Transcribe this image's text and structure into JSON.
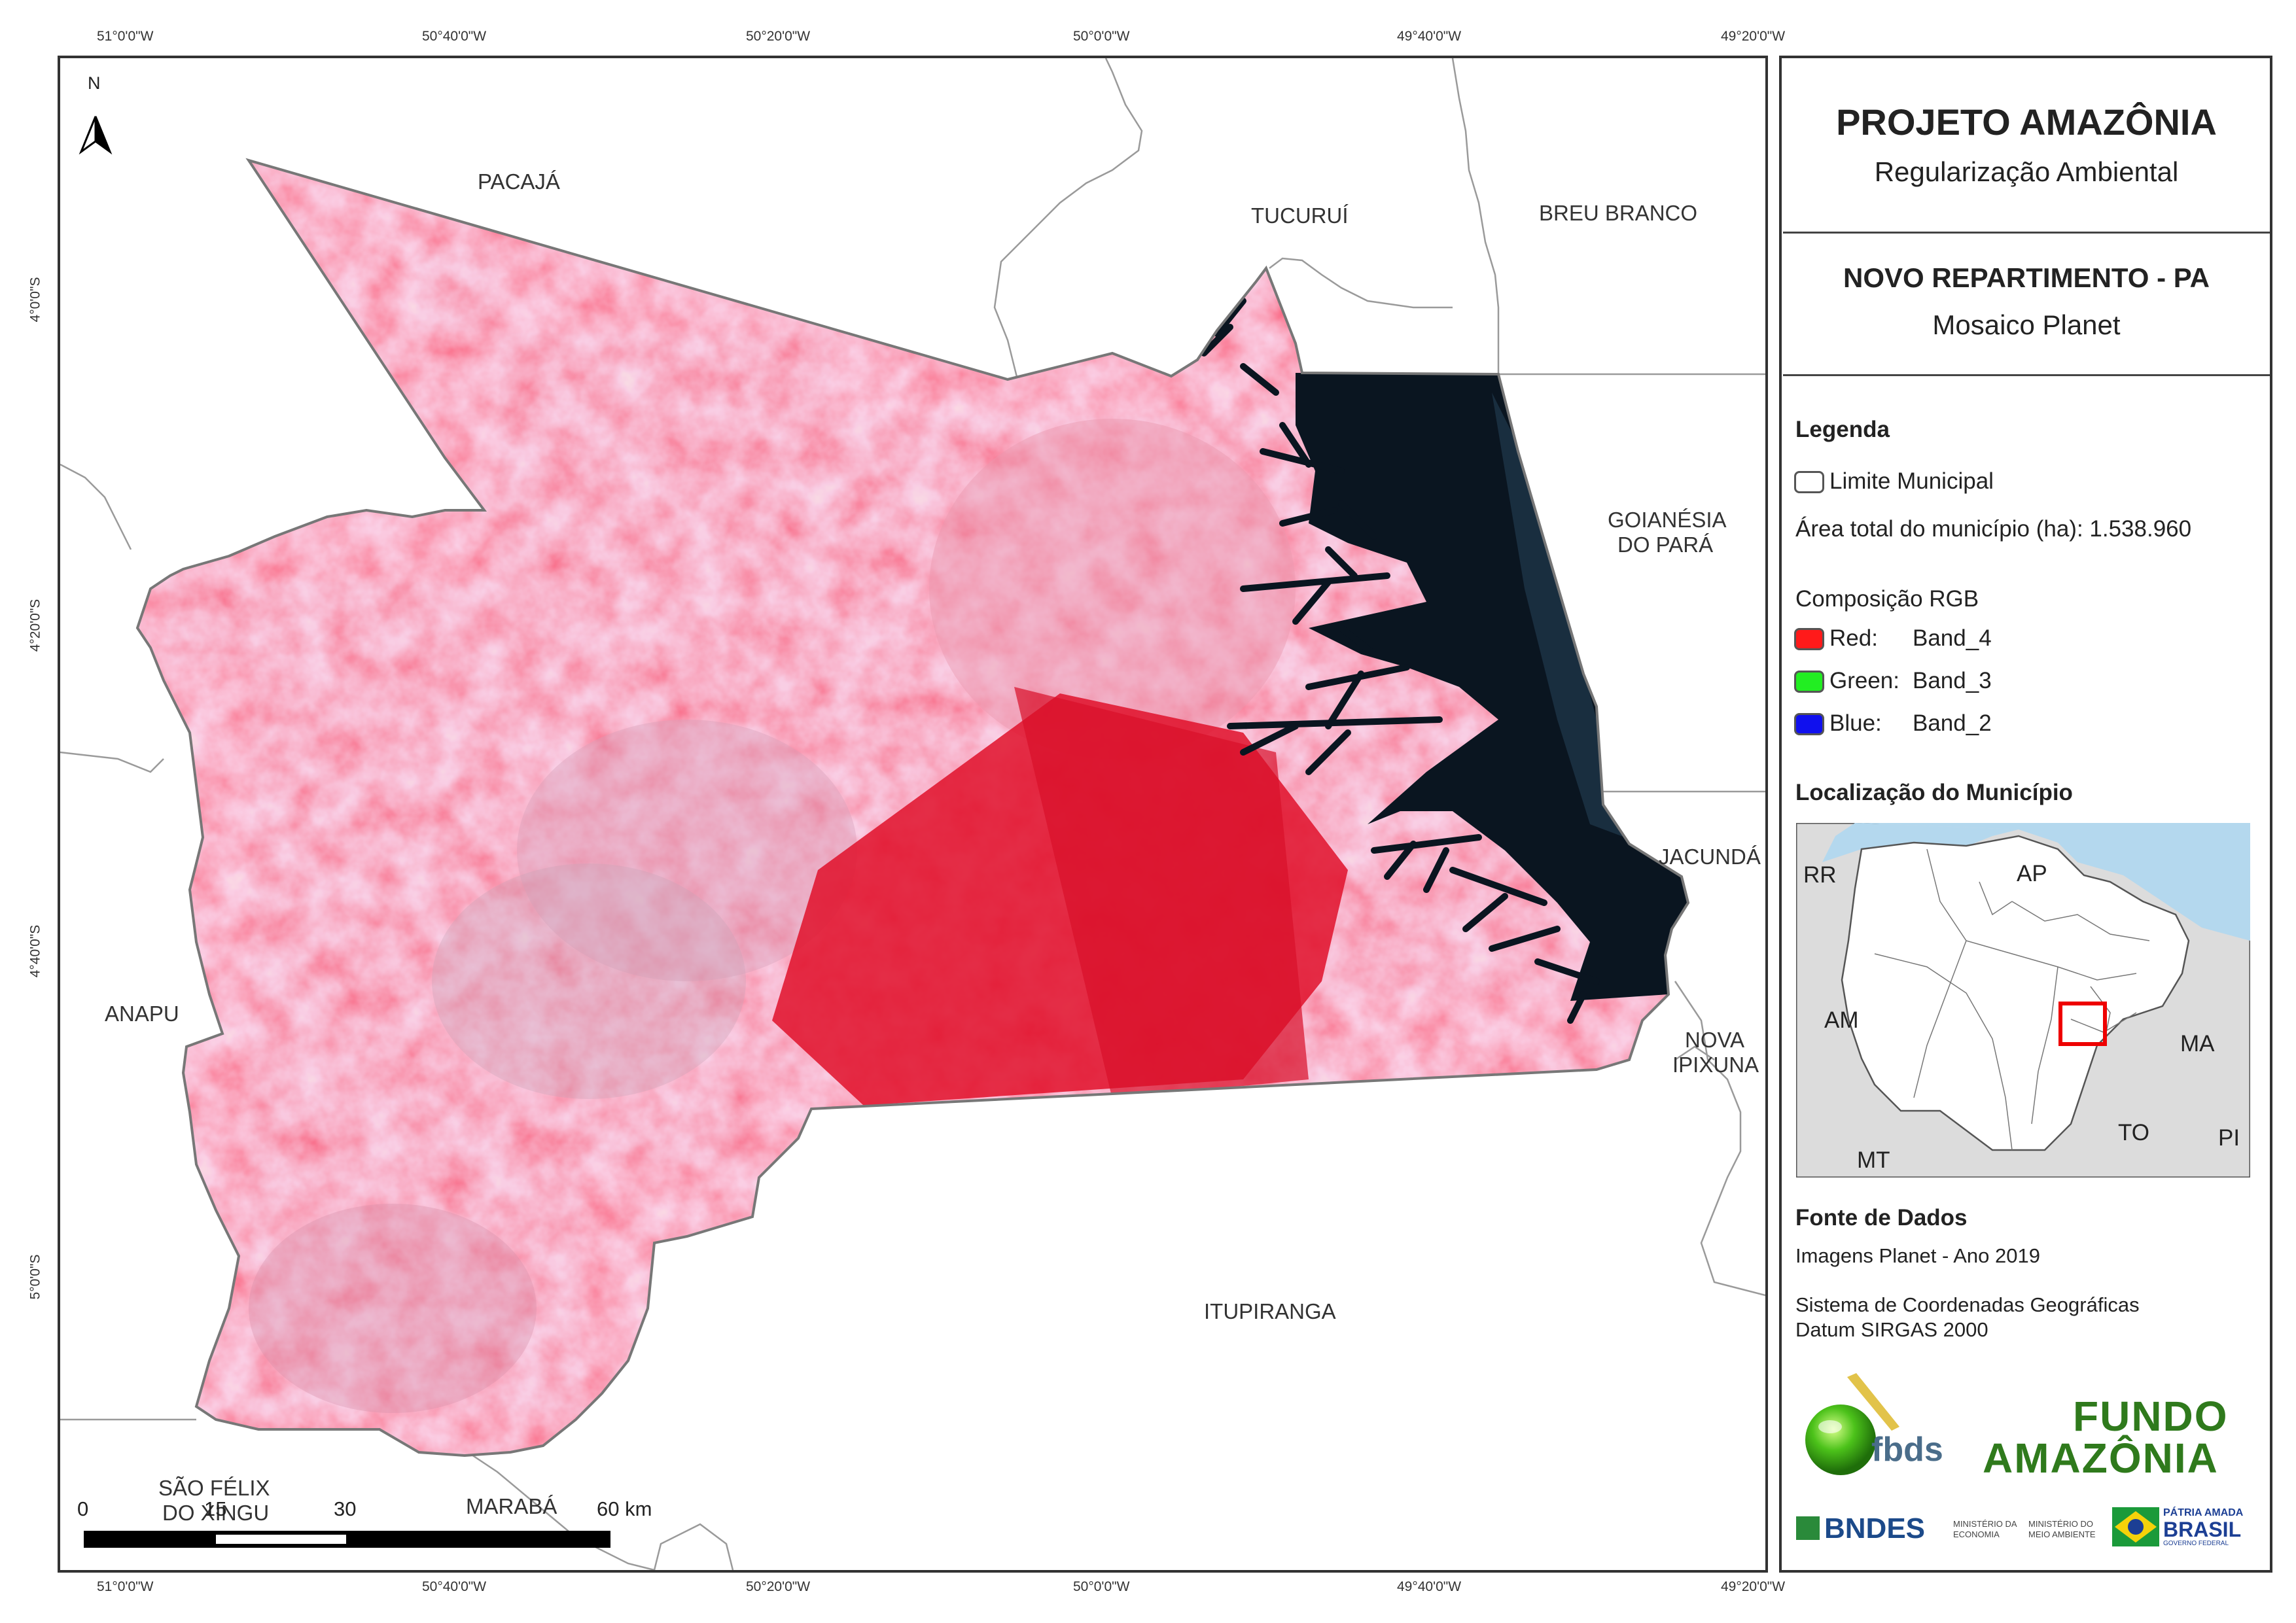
{
  "map": {
    "top_coords": [
      "51°0'0\"W",
      "50°40'0\"W",
      "50°20'0\"W",
      "50°0'0\"W",
      "49°40'0\"W",
      "49°20'0\"W"
    ],
    "bottom_coords": [
      "51°0'0\"W",
      "50°40'0\"W",
      "50°20'0\"W",
      "50°0'0\"W",
      "49°40'0\"W",
      "49°20'0\"W"
    ],
    "left_coords": [
      "4°0'0\"S",
      "4°20'0\"S",
      "4°40'0\"S",
      "5°0'0\"S"
    ],
    "north": "N",
    "municipalities": {
      "pacaja": "PACAJÁ",
      "tucurui": "TUCURUÍ",
      "breu_branco": "BREU BRANCO",
      "goianesia_1": "GOIANÉSIA",
      "goianesia_2": "DO PARÁ",
      "jacunda": "JACUNDÁ",
      "nova_ipixuna_1": "NOVA",
      "nova_ipixuna_2": "IPIXUNA",
      "anapu": "ANAPU",
      "sao_felix_1": "SÃO FÉLIX",
      "sao_felix_2": "DO XINGU",
      "maraba": "MARABÁ",
      "itupiranga": "ITUPIRANGA"
    },
    "scale_bar": {
      "labels": [
        "0",
        "15",
        "30",
        "60 km"
      ]
    }
  },
  "panel": {
    "title": "PROJETO AMAZÔNIA",
    "subtitle": "Regularização Ambiental",
    "municipality": "NOVO REPARTIMENTO - PA",
    "mosaic": "Mosaico Planet",
    "legend_heading": "Legenda",
    "legend_boundary": "Limite Municipal",
    "legend_area": "Área total do município (ha): 1.538.960",
    "rgb_heading": "Composição RGB",
    "rgb": [
      {
        "channel": "Red:",
        "band": "Band_4",
        "color": "#ff1a1a"
      },
      {
        "channel": "Green:",
        "band": "Band_3",
        "color": "#22ee22"
      },
      {
        "channel": "Blue:",
        "band": "Band_2",
        "color": "#1010ee"
      }
    ],
    "location_heading": "Localização do Município",
    "inset_labels": {
      "rr": "RR",
      "ap": "AP",
      "am": "AM",
      "ma": "MA",
      "to": "TO",
      "mt": "MT",
      "pi": "PI"
    },
    "sources_heading": "Fonte de Dados",
    "sources_images": "Imagens Planet - Ano 2019",
    "crs_line1": "Sistema de Coordenadas Geográficas",
    "crs_line2": "Datum SIRGAS 2000",
    "logos": {
      "fbds": "fbds",
      "fundo_1": "FUNDO",
      "fundo_2": "AMAZÔNIA",
      "bndes": "BNDES",
      "min_economia_1": "MINISTÉRIO DA",
      "min_economia_2": "ECONOMIA",
      "min_ambiente_1": "MINISTÉRIO DO",
      "min_ambiente_2": "MEIO AMBIENTE",
      "patria_1": "PÁTRIA AMADA",
      "patria_2": "BRASIL",
      "patria_3": "GOVERNO FEDERAL"
    }
  }
}
